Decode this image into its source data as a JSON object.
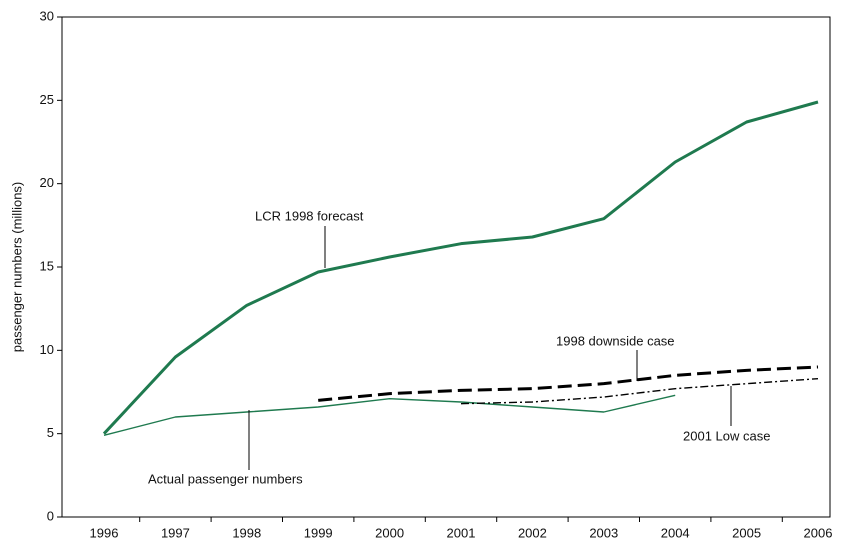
{
  "chart_data": {
    "type": "line",
    "y_label": "passenger numbers (millions)",
    "categories": [
      "1996",
      "1997",
      "1998",
      "1999",
      "2000",
      "2001",
      "2002",
      "2003",
      "2004",
      "2005",
      "2006"
    ],
    "series": [
      {
        "name": "LCR 1998 forecast",
        "color": "#1f7a4f",
        "dash": "solid",
        "weight": "bold",
        "values": [
          5.0,
          9.6,
          12.7,
          14.7,
          15.6,
          16.4,
          16.8,
          17.9,
          21.3,
          23.7,
          24.9
        ]
      },
      {
        "name": "Actual passenger numbers",
        "color": "#1f7a4f",
        "dash": "solid",
        "weight": "normal",
        "values": [
          4.9,
          6.0,
          6.3,
          6.6,
          7.1,
          6.9,
          6.6,
          6.3,
          7.3,
          null,
          null
        ]
      },
      {
        "name": "1998 downside case",
        "color": "#000000",
        "dash": "dashed",
        "weight": "bold",
        "values": [
          null,
          null,
          null,
          7.0,
          7.4,
          7.6,
          7.7,
          8.0,
          8.5,
          8.8,
          9.0
        ]
      },
      {
        "name": "2001 Low case",
        "color": "#000000",
        "dash": "dashdot",
        "weight": "normal",
        "values": [
          null,
          null,
          null,
          null,
          null,
          6.8,
          6.9,
          7.2,
          7.7,
          8.0,
          8.3
        ]
      }
    ],
    "ylim": [
      0,
      30
    ],
    "yticks": [
      0,
      5,
      10,
      15,
      20,
      25,
      30
    ],
    "grid": false
  }
}
